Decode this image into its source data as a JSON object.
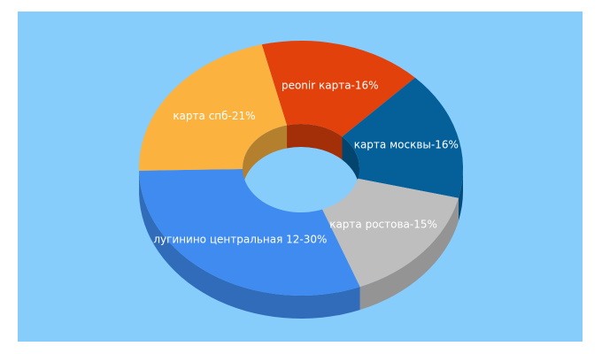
{
  "chart_data": {
    "type": "pie",
    "style": "3d-donut",
    "background": "#87CDFB",
    "slices": [
      {
        "label": "peonir карта-16%",
        "value": 16,
        "color": "#E2410B"
      },
      {
        "label": "карта москвы-16%",
        "value": 16,
        "color": "#05609A"
      },
      {
        "label": "карта ростова-15%",
        "value": 15,
        "color": "#BEBEBE"
      },
      {
        "label": "лугинино центральная 12-30%",
        "value": 30,
        "color": "#3F8BEF"
      },
      {
        "label": "карта спб-21%",
        "value": 21,
        "color": "#FBB23F"
      }
    ]
  }
}
